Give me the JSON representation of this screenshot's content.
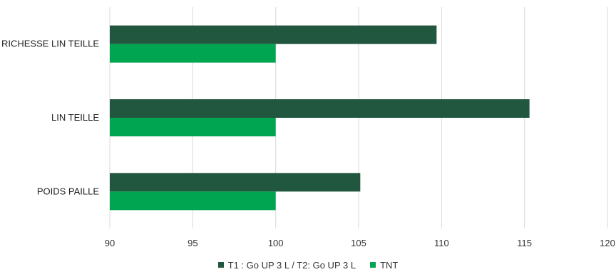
{
  "chart_data": {
    "type": "bar",
    "orientation": "horizontal",
    "title": "",
    "xlabel": "",
    "ylabel": "",
    "categories": [
      "RICHESSE LIN TEILLE",
      "LIN TEILLE",
      "POIDS PAILLE"
    ],
    "series": [
      {
        "name": "T1 : Go UP 3 L / T2: Go UP 3 L",
        "values": [
          109.7,
          115.3,
          105.1
        ],
        "color": "#21573f"
      },
      {
        "name": "TNT",
        "values": [
          100,
          100,
          100
        ],
        "color": "#00a551"
      }
    ],
    "xlim": [
      90,
      120
    ],
    "xticks": [
      "90",
      "95",
      "100",
      "105",
      "110",
      "115",
      "120"
    ],
    "grid": "vertical",
    "legend_position": "bottom"
  }
}
